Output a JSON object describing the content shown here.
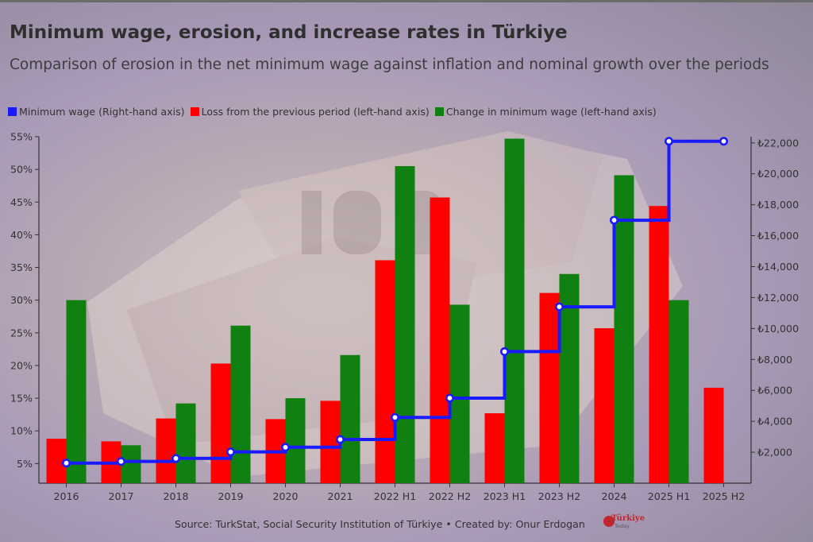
{
  "header": {
    "title": "Minimum wage, erosion, and increase rates in Türkiye",
    "subtitle": "Comparison of erosion in the net minimum wage against inflation and nominal growth over the periods"
  },
  "legend": {
    "items": [
      {
        "label": "Minimum wage (Right-hand axis)",
        "color": "#1a1aff"
      },
      {
        "label": "Loss from the previous period (left-hand axis)",
        "color": "#ff0000"
      },
      {
        "label": "Change in minimum wage (left-hand axis)",
        "color": "#108010"
      }
    ]
  },
  "footer": {
    "source": "Source: TurkStat, Social Security Institution of Türkiye • Created by: Onur Erdogan",
    "logo_text": "Türkiye",
    "logo_subtext": "Today"
  },
  "chart_data": {
    "type": "bar",
    "categories": [
      "2016",
      "2017",
      "2018",
      "2019",
      "2020",
      "2021",
      "2022 H1",
      "2022 H2",
      "2023 H1",
      "2023 H2",
      "2024",
      "2025 H1",
      "2025 H2"
    ],
    "series": [
      {
        "name": "Loss from the previous period (left-hand axis)",
        "kind": "bar",
        "color": "#ff0000",
        "axis": "left",
        "values": [
          8.8,
          8.4,
          11.9,
          20.3,
          11.8,
          14.6,
          36.1,
          45.7,
          12.7,
          31.1,
          25.7,
          44.4,
          16.6
        ]
      },
      {
        "name": "Change in minimum wage (left-hand axis)",
        "kind": "bar",
        "color": "#108010",
        "axis": "left",
        "values": [
          30.0,
          7.8,
          14.2,
          26.1,
          15.0,
          21.6,
          50.5,
          29.3,
          54.7,
          34.0,
          49.1,
          30.0,
          null
        ]
      },
      {
        "name": "Minimum wage (Right-hand axis)",
        "kind": "step-line",
        "color": "#1a1aff",
        "axis": "right",
        "values": [
          1300,
          1404,
          1603,
          2020,
          2324,
          2826,
          4253,
          5500,
          8507,
          11402,
          17002,
          22104,
          22104
        ]
      }
    ],
    "left_axis": {
      "ylim": [
        2,
        55
      ],
      "ticks": [
        5,
        10,
        15,
        20,
        25,
        30,
        35,
        40,
        45,
        50,
        55
      ],
      "tick_labels": [
        "5%",
        "10%",
        "15%",
        "20%",
        "25%",
        "30%",
        "35%",
        "40%",
        "45%",
        "50%",
        "55%"
      ]
    },
    "right_axis": {
      "ylim": [
        0,
        22400
      ],
      "ticks": [
        2000,
        4000,
        6000,
        8000,
        10000,
        12000,
        14000,
        16000,
        18000,
        20000,
        22000
      ],
      "tick_labels": [
        "₺2,000",
        "₺4,000",
        "₺6,000",
        "₺8,000",
        "₺10,000",
        "₺12,000",
        "₺14,000",
        "₺16,000",
        "₺18,000",
        "₺20,000",
        "₺22,000"
      ]
    },
    "title": "Minimum wage, erosion, and increase rates in Türkiye",
    "xlabel": "",
    "ylabel": "",
    "grid": false
  }
}
